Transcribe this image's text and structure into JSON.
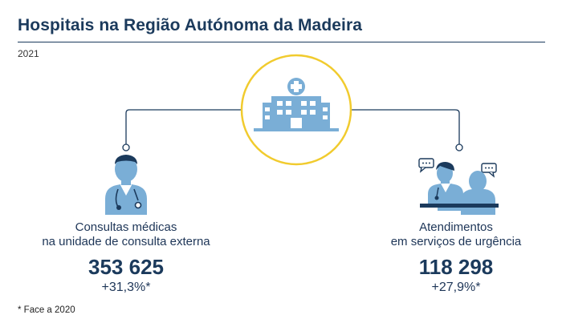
{
  "title": "Hospitais na Região Autónoma da Madeira",
  "year": "2021",
  "left": {
    "line1": "Consultas médicas",
    "line2": "na unidade de consulta externa",
    "value": "353 625",
    "change": "+31,3%*"
  },
  "right": {
    "line1": "Atendimentos",
    "line2": "em serviços de urgência",
    "value": "118 298",
    "change": "+27,9%*"
  },
  "footnote": "* Face a 2020",
  "colors": {
    "accent": "#f1cb2e",
    "icon": "#7aaed6",
    "line": "#1b3a5c"
  },
  "icons": [
    "hospital-icon",
    "doctor-icon",
    "nurse-icon",
    "patient-icon",
    "chat-icon"
  ]
}
